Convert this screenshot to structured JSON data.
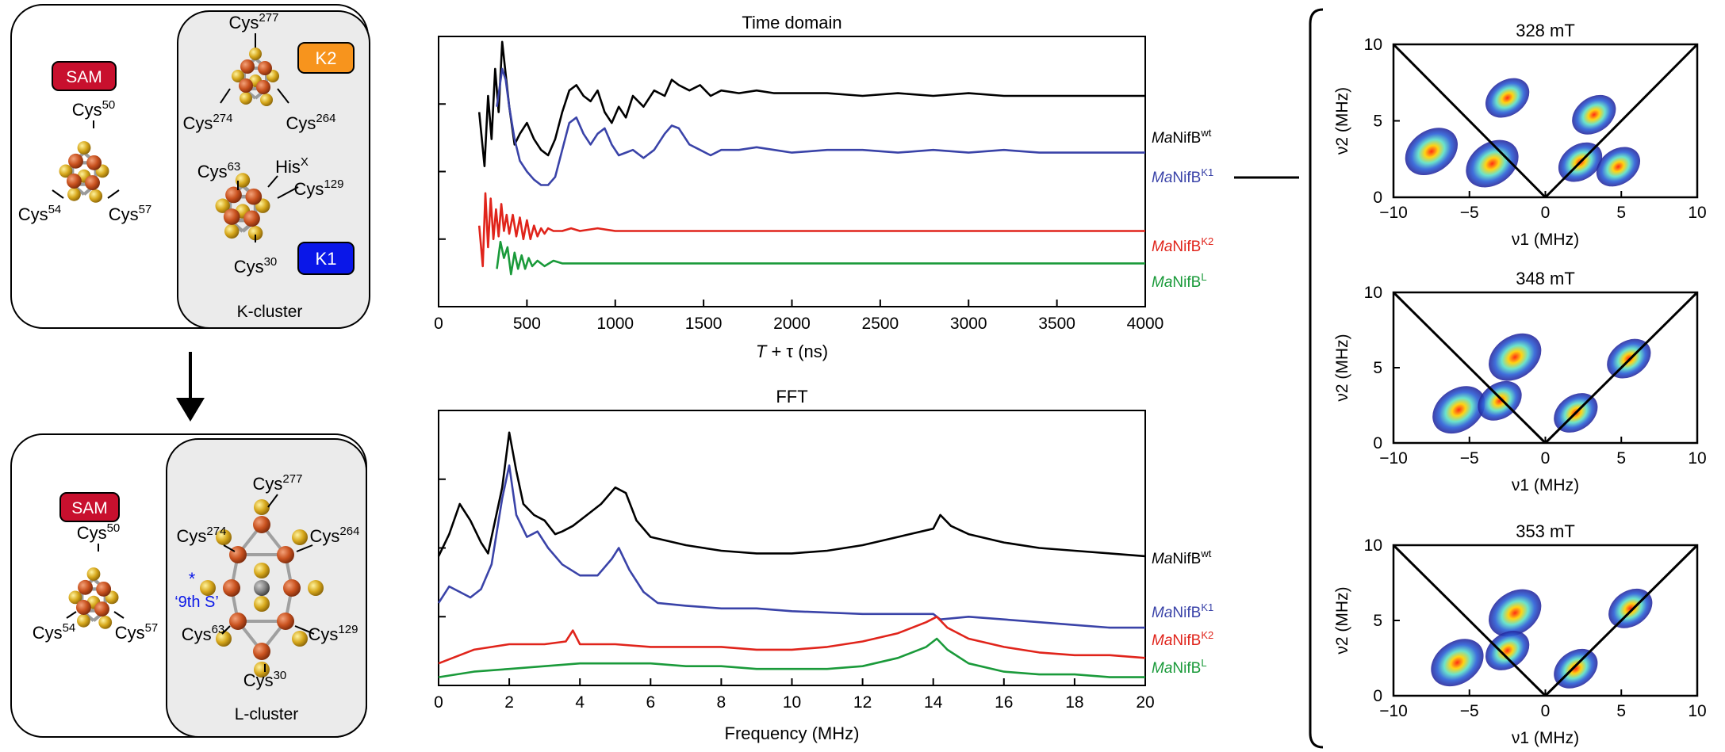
{
  "colors": {
    "wt": "#000000",
    "k1": "#3a43a8",
    "k2": "#e0241b",
    "L": "#1a9a3a",
    "sam": "#c8102e",
    "k2tag": "#f7941d",
    "k1tag": "#0a17e8"
  },
  "panel_a": {
    "sam": "SAM",
    "k2": "K2",
    "k1": "K1",
    "kcluster_label": "K-cluster",
    "lcluster_label": "L-cluster",
    "top": {
      "cys50": [
        "Cys",
        "50"
      ],
      "cys54": [
        "Cys",
        "54"
      ],
      "cys57": [
        "Cys",
        "57"
      ],
      "cys277": [
        "Cys",
        "277"
      ],
      "cys274": [
        "Cys",
        "274"
      ],
      "cys264": [
        "Cys",
        "264"
      ],
      "cys63": [
        "Cys",
        "63"
      ],
      "hisx": [
        "His",
        "X"
      ],
      "cys129": [
        "Cys",
        "129"
      ],
      "cys30": [
        "Cys",
        "30"
      ]
    },
    "bottom": {
      "cys50": [
        "Cys",
        "50"
      ],
      "cys54": [
        "Cys",
        "54"
      ],
      "cys57": [
        "Cys",
        "57"
      ],
      "cys277": [
        "Cys",
        "277"
      ],
      "cys274": [
        "Cys",
        "274"
      ],
      "cys264": [
        "Cys",
        "264"
      ],
      "cys63": [
        "Cys",
        "63"
      ],
      "cys129": [
        "Cys",
        "129"
      ],
      "cys30": [
        "Cys",
        "30"
      ],
      "star": "*",
      "ninth_s": "‘9th S’"
    }
  },
  "legend_labels": [
    {
      "key": "wt",
      "prefix": "Ma",
      "main": "NifB",
      "sup": "wt"
    },
    {
      "key": "k1",
      "prefix": "Ma",
      "main": "NifB",
      "sup": "K1"
    },
    {
      "key": "k2",
      "prefix": "Ma",
      "main": "NifB",
      "sup": "K2"
    },
    {
      "key": "L",
      "prefix": "Ma",
      "main": "NifB",
      "sup": "L"
    }
  ],
  "chart_data": [
    {
      "type": "line",
      "title": "Time domain",
      "xlabel_var": "T",
      "xlabel_rest": " + τ (ns)",
      "xlim": [
        0,
        4000
      ],
      "xticks": [
        "0",
        "500",
        "1000",
        "1500",
        "2000",
        "2500",
        "3000",
        "3500",
        "4000"
      ],
      "series": [
        {
          "name": "MaNifBwt",
          "x": [
            230,
            260,
            280,
            300,
            320,
            340,
            360,
            380,
            400,
            430,
            460,
            500,
            540,
            580,
            620,
            660,
            700,
            740,
            780,
            820,
            860,
            900,
            940,
            980,
            1020,
            1060,
            1100,
            1160,
            1220,
            1280,
            1320,
            1360,
            1420,
            1480,
            1540,
            1600,
            1700,
            1800,
            1900,
            2000,
            2200,
            2400,
            2600,
            2800,
            3000,
            3200,
            3400,
            3600,
            3800,
            4000
          ],
          "y": [
            0.72,
            0.52,
            0.78,
            0.62,
            0.88,
            0.72,
            0.98,
            0.86,
            0.74,
            0.6,
            0.64,
            0.68,
            0.62,
            0.58,
            0.56,
            0.62,
            0.72,
            0.8,
            0.82,
            0.78,
            0.76,
            0.8,
            0.72,
            0.68,
            0.74,
            0.7,
            0.78,
            0.74,
            0.8,
            0.78,
            0.84,
            0.82,
            0.8,
            0.82,
            0.78,
            0.8,
            0.79,
            0.8,
            0.79,
            0.79,
            0.79,
            0.78,
            0.79,
            0.78,
            0.79,
            0.78,
            0.78,
            0.78,
            0.78,
            0.78
          ]
        },
        {
          "name": "MaNifBK1",
          "x": [
            330,
            360,
            380,
            400,
            430,
            460,
            500,
            540,
            580,
            620,
            660,
            700,
            740,
            780,
            820,
            860,
            900,
            940,
            980,
            1020,
            1060,
            1100,
            1160,
            1220,
            1280,
            1320,
            1360,
            1420,
            1480,
            1540,
            1600,
            1700,
            1800,
            1900,
            2000,
            2200,
            2400,
            2600,
            2800,
            3000,
            3200,
            3400,
            3600,
            3800,
            4000
          ],
          "y": [
            0.74,
            0.88,
            0.84,
            0.74,
            0.62,
            0.54,
            0.5,
            0.47,
            0.45,
            0.45,
            0.48,
            0.58,
            0.68,
            0.7,
            0.64,
            0.6,
            0.64,
            0.66,
            0.6,
            0.56,
            0.57,
            0.58,
            0.55,
            0.58,
            0.64,
            0.67,
            0.66,
            0.6,
            0.58,
            0.56,
            0.58,
            0.58,
            0.59,
            0.58,
            0.57,
            0.58,
            0.58,
            0.57,
            0.58,
            0.57,
            0.58,
            0.57,
            0.57,
            0.57,
            0.57
          ]
        },
        {
          "name": "MaNifBK2",
          "x": [
            230,
            250,
            265,
            280,
            295,
            310,
            325,
            340,
            355,
            370,
            385,
            400,
            420,
            440,
            460,
            480,
            500,
            520,
            540,
            560,
            580,
            600,
            620,
            650,
            700,
            750,
            800,
            900,
            1000,
            1200,
            1500,
            2000,
            2500,
            3000,
            3500,
            4000
          ],
          "y": [
            0.3,
            0.15,
            0.42,
            0.22,
            0.4,
            0.25,
            0.36,
            0.26,
            0.38,
            0.28,
            0.34,
            0.27,
            0.34,
            0.26,
            0.33,
            0.25,
            0.32,
            0.25,
            0.3,
            0.26,
            0.29,
            0.27,
            0.29,
            0.28,
            0.28,
            0.29,
            0.28,
            0.29,
            0.28,
            0.28,
            0.28,
            0.28,
            0.28,
            0.28,
            0.28,
            0.28
          ]
        },
        {
          "name": "MaNifBL",
          "x": [
            330,
            350,
            370,
            390,
            410,
            430,
            450,
            470,
            490,
            510,
            530,
            560,
            600,
            650,
            700,
            800,
            900,
            1000,
            1200,
            1500,
            2000,
            2500,
            3000,
            3500,
            4000
          ],
          "y": [
            0.14,
            0.24,
            0.18,
            0.22,
            0.12,
            0.2,
            0.14,
            0.19,
            0.14,
            0.18,
            0.15,
            0.17,
            0.15,
            0.17,
            0.16,
            0.16,
            0.16,
            0.16,
            0.16,
            0.16,
            0.16,
            0.16,
            0.16,
            0.16,
            0.16
          ]
        }
      ]
    },
    {
      "type": "line",
      "title": "FFT",
      "xlabel": "Frequency (MHz)",
      "xlim": [
        0,
        20
      ],
      "xticks": [
        "0",
        "2",
        "4",
        "6",
        "8",
        "10",
        "12",
        "14",
        "16",
        "18",
        "20"
      ],
      "series": [
        {
          "name": "MaNifBwt",
          "x": [
            0,
            0.3,
            0.6,
            0.9,
            1.2,
            1.4,
            1.6,
            1.8,
            2.0,
            2.2,
            2.4,
            2.7,
            3.0,
            3.3,
            3.5,
            3.8,
            4.2,
            4.6,
            5.0,
            5.3,
            5.6,
            6.0,
            7,
            8,
            9,
            10,
            11,
            12,
            13,
            14,
            14.2,
            14.5,
            15,
            16,
            17,
            18,
            19,
            20
          ],
          "y": [
            0.47,
            0.55,
            0.66,
            0.6,
            0.52,
            0.48,
            0.6,
            0.72,
            0.92,
            0.78,
            0.66,
            0.62,
            0.6,
            0.55,
            0.56,
            0.58,
            0.62,
            0.66,
            0.72,
            0.7,
            0.6,
            0.54,
            0.51,
            0.49,
            0.48,
            0.48,
            0.49,
            0.51,
            0.54,
            0.57,
            0.62,
            0.58,
            0.55,
            0.52,
            0.5,
            0.49,
            0.48,
            0.47
          ]
        },
        {
          "name": "MaNifBK1",
          "x": [
            0,
            0.3,
            0.6,
            0.9,
            1.2,
            1.5,
            1.8,
            2.0,
            2.2,
            2.5,
            2.8,
            3.1,
            3.5,
            4.0,
            4.5,
            4.9,
            5.1,
            5.4,
            5.8,
            6.2,
            7,
            8,
            9,
            10,
            12,
            14,
            14.2,
            15,
            16,
            17,
            18,
            19,
            20
          ],
          "y": [
            0.3,
            0.36,
            0.34,
            0.32,
            0.35,
            0.44,
            0.68,
            0.8,
            0.62,
            0.54,
            0.56,
            0.5,
            0.44,
            0.4,
            0.4,
            0.46,
            0.5,
            0.42,
            0.34,
            0.3,
            0.29,
            0.28,
            0.28,
            0.27,
            0.26,
            0.26,
            0.24,
            0.25,
            0.24,
            0.23,
            0.22,
            0.21,
            0.21
          ]
        },
        {
          "name": "MaNifBK2",
          "x": [
            0,
            1,
            2,
            3,
            3.6,
            3.8,
            4.0,
            5,
            6,
            7,
            8,
            9,
            10,
            11,
            12,
            13,
            13.8,
            14.1,
            14.4,
            15,
            16,
            17,
            18,
            19,
            20
          ],
          "y": [
            0.08,
            0.13,
            0.15,
            0.15,
            0.16,
            0.2,
            0.15,
            0.15,
            0.14,
            0.14,
            0.14,
            0.13,
            0.13,
            0.14,
            0.16,
            0.19,
            0.23,
            0.25,
            0.21,
            0.17,
            0.14,
            0.12,
            0.11,
            0.11,
            0.1
          ]
        },
        {
          "name": "MaNifBL",
          "x": [
            0,
            1,
            2,
            3,
            4,
            5,
            6,
            7,
            8,
            9,
            10,
            11,
            12,
            13,
            13.8,
            14.1,
            14.4,
            15,
            16,
            17,
            18,
            19,
            20
          ],
          "y": [
            0.03,
            0.05,
            0.06,
            0.07,
            0.08,
            0.08,
            0.08,
            0.07,
            0.07,
            0.06,
            0.06,
            0.06,
            0.07,
            0.1,
            0.14,
            0.17,
            0.13,
            0.08,
            0.05,
            0.04,
            0.04,
            0.03,
            0.03
          ]
        }
      ]
    },
    {
      "type": "heatmap",
      "title": "328 mT",
      "xlabel": "ν1 (MHz)",
      "ylabel": "ν2 (MHz)",
      "xlim": [
        -10,
        10
      ],
      "ylim": [
        0,
        10
      ],
      "xticks": [
        "−10",
        "−5",
        "0",
        "5",
        "10"
      ],
      "yticks": [
        "0",
        "5",
        "10"
      ],
      "peaks": [
        {
          "x": -7.5,
          "y": 3.0
        },
        {
          "x": -3.5,
          "y": 2.2
        },
        {
          "x": -2.5,
          "y": 6.5
        },
        {
          "x": 2.3,
          "y": 2.3
        },
        {
          "x": 3.2,
          "y": 5.4
        },
        {
          "x": 4.8,
          "y": 2.0
        }
      ]
    },
    {
      "type": "heatmap",
      "title": "348 mT",
      "xlabel": "ν1 (MHz)",
      "ylabel": "ν2 (MHz)",
      "xlim": [
        -10,
        10
      ],
      "ylim": [
        0,
        10
      ],
      "xticks": [
        "−10",
        "−5",
        "0",
        "5",
        "10"
      ],
      "yticks": [
        "0",
        "5",
        "10"
      ],
      "peaks": [
        {
          "x": -5.7,
          "y": 2.2
        },
        {
          "x": -2.0,
          "y": 5.7
        },
        {
          "x": 2.0,
          "y": 2.0
        },
        {
          "x": 5.5,
          "y": 5.6
        },
        {
          "x": -3.0,
          "y": 2.8
        }
      ]
    },
    {
      "type": "heatmap",
      "title": "353 mT",
      "xlabel": "ν1 (MHz)",
      "ylabel": "ν2 (MHz)",
      "xlim": [
        -10,
        10
      ],
      "ylim": [
        0,
        10
      ],
      "xticks": [
        "−10",
        "−5",
        "0",
        "5",
        "10"
      ],
      "yticks": [
        "0",
        "5",
        "10"
      ],
      "peaks": [
        {
          "x": -5.8,
          "y": 2.2
        },
        {
          "x": -2.0,
          "y": 5.5
        },
        {
          "x": 2.0,
          "y": 1.8
        },
        {
          "x": 5.6,
          "y": 5.8
        },
        {
          "x": -2.5,
          "y": 3.0
        }
      ]
    }
  ]
}
